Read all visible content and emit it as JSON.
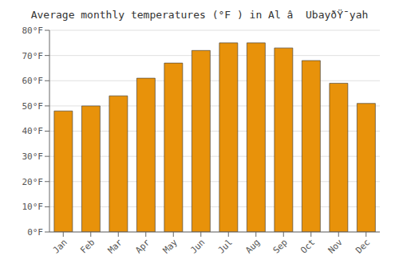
{
  "chart_data": {
    "type": "bar",
    "title": "Average monthly temperatures (°F ) in Al â  UbayðŸ¯yah",
    "categories": [
      "Jan",
      "Feb",
      "Mar",
      "Apr",
      "May",
      "Jun",
      "Jul",
      "Aug",
      "Sep",
      "Oct",
      "Nov",
      "Dec"
    ],
    "values": [
      48,
      50,
      54,
      61,
      67,
      72,
      75,
      75,
      73,
      68,
      59,
      51
    ],
    "color": "#E8920A",
    "ylim": [
      0,
      80
    ],
    "yticks": [
      {
        "value": 0,
        "label": "0°F"
      },
      {
        "value": 10,
        "label": "10°F"
      },
      {
        "value": 20,
        "label": "20°F"
      },
      {
        "value": 30,
        "label": "30°F"
      },
      {
        "value": 40,
        "label": "40°F"
      },
      {
        "value": 50,
        "label": "50°F"
      },
      {
        "value": 60,
        "label": "60°F"
      },
      {
        "value": 70,
        "label": "70°F"
      },
      {
        "value": 80,
        "label": "80°F"
      }
    ],
    "grid": true
  }
}
